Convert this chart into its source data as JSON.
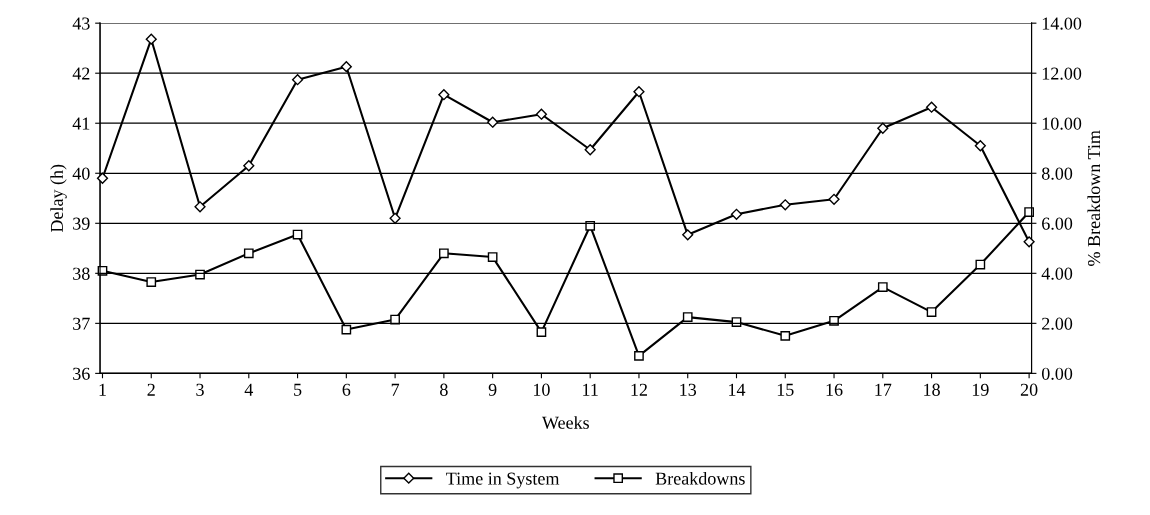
{
  "chart_data": {
    "type": "line",
    "categories": [
      "1",
      "2",
      "3",
      "4",
      "5",
      "6",
      "7",
      "8",
      "9",
      "10",
      "11",
      "12",
      "13",
      "14",
      "15",
      "16",
      "17",
      "18",
      "19",
      "20"
    ],
    "xlabel": "Weeks",
    "ylabel": "Delay (h)",
    "y2label": "% Breakdown Tim",
    "ylim": [
      36,
      43
    ],
    "yticks": [
      36,
      37,
      38,
      39,
      40,
      41,
      42,
      43
    ],
    "y2lim": [
      0,
      14
    ],
    "y2ticks": [
      {
        "value": 0,
        "label": "0.00"
      },
      {
        "value": 2,
        "label": "2.00"
      },
      {
        "value": 4,
        "label": "4.00"
      },
      {
        "value": 6,
        "label": "6.00"
      },
      {
        "value": 8,
        "label": "8.00"
      },
      {
        "value": 10,
        "label": "10.00"
      },
      {
        "value": 12,
        "label": "12.00"
      },
      {
        "value": 14,
        "label": "14.00"
      }
    ],
    "grid": "y",
    "legend": "bottom",
    "series": [
      {
        "name": "Time in System",
        "color": "#000000",
        "marker": "diamond",
        "values": [
          39.9,
          42.68,
          39.33,
          40.15,
          41.87,
          42.13,
          39.1,
          41.57,
          41.02,
          41.18,
          40.47,
          41.63,
          38.77,
          39.18,
          39.37,
          39.48,
          40.9,
          41.32,
          40.55,
          38.63
        ]
      },
      {
        "name": "Breakdowns",
        "color": "#000000",
        "marker": "square",
        "axis": "y2",
        "values": [
          4.1,
          3.65,
          3.95,
          4.8,
          5.55,
          1.75,
          2.15,
          4.8,
          4.65,
          1.65,
          5.9,
          0.7,
          2.25,
          2.05,
          1.5,
          2.1,
          3.45,
          2.45,
          4.35,
          6.45
        ]
      }
    ]
  }
}
